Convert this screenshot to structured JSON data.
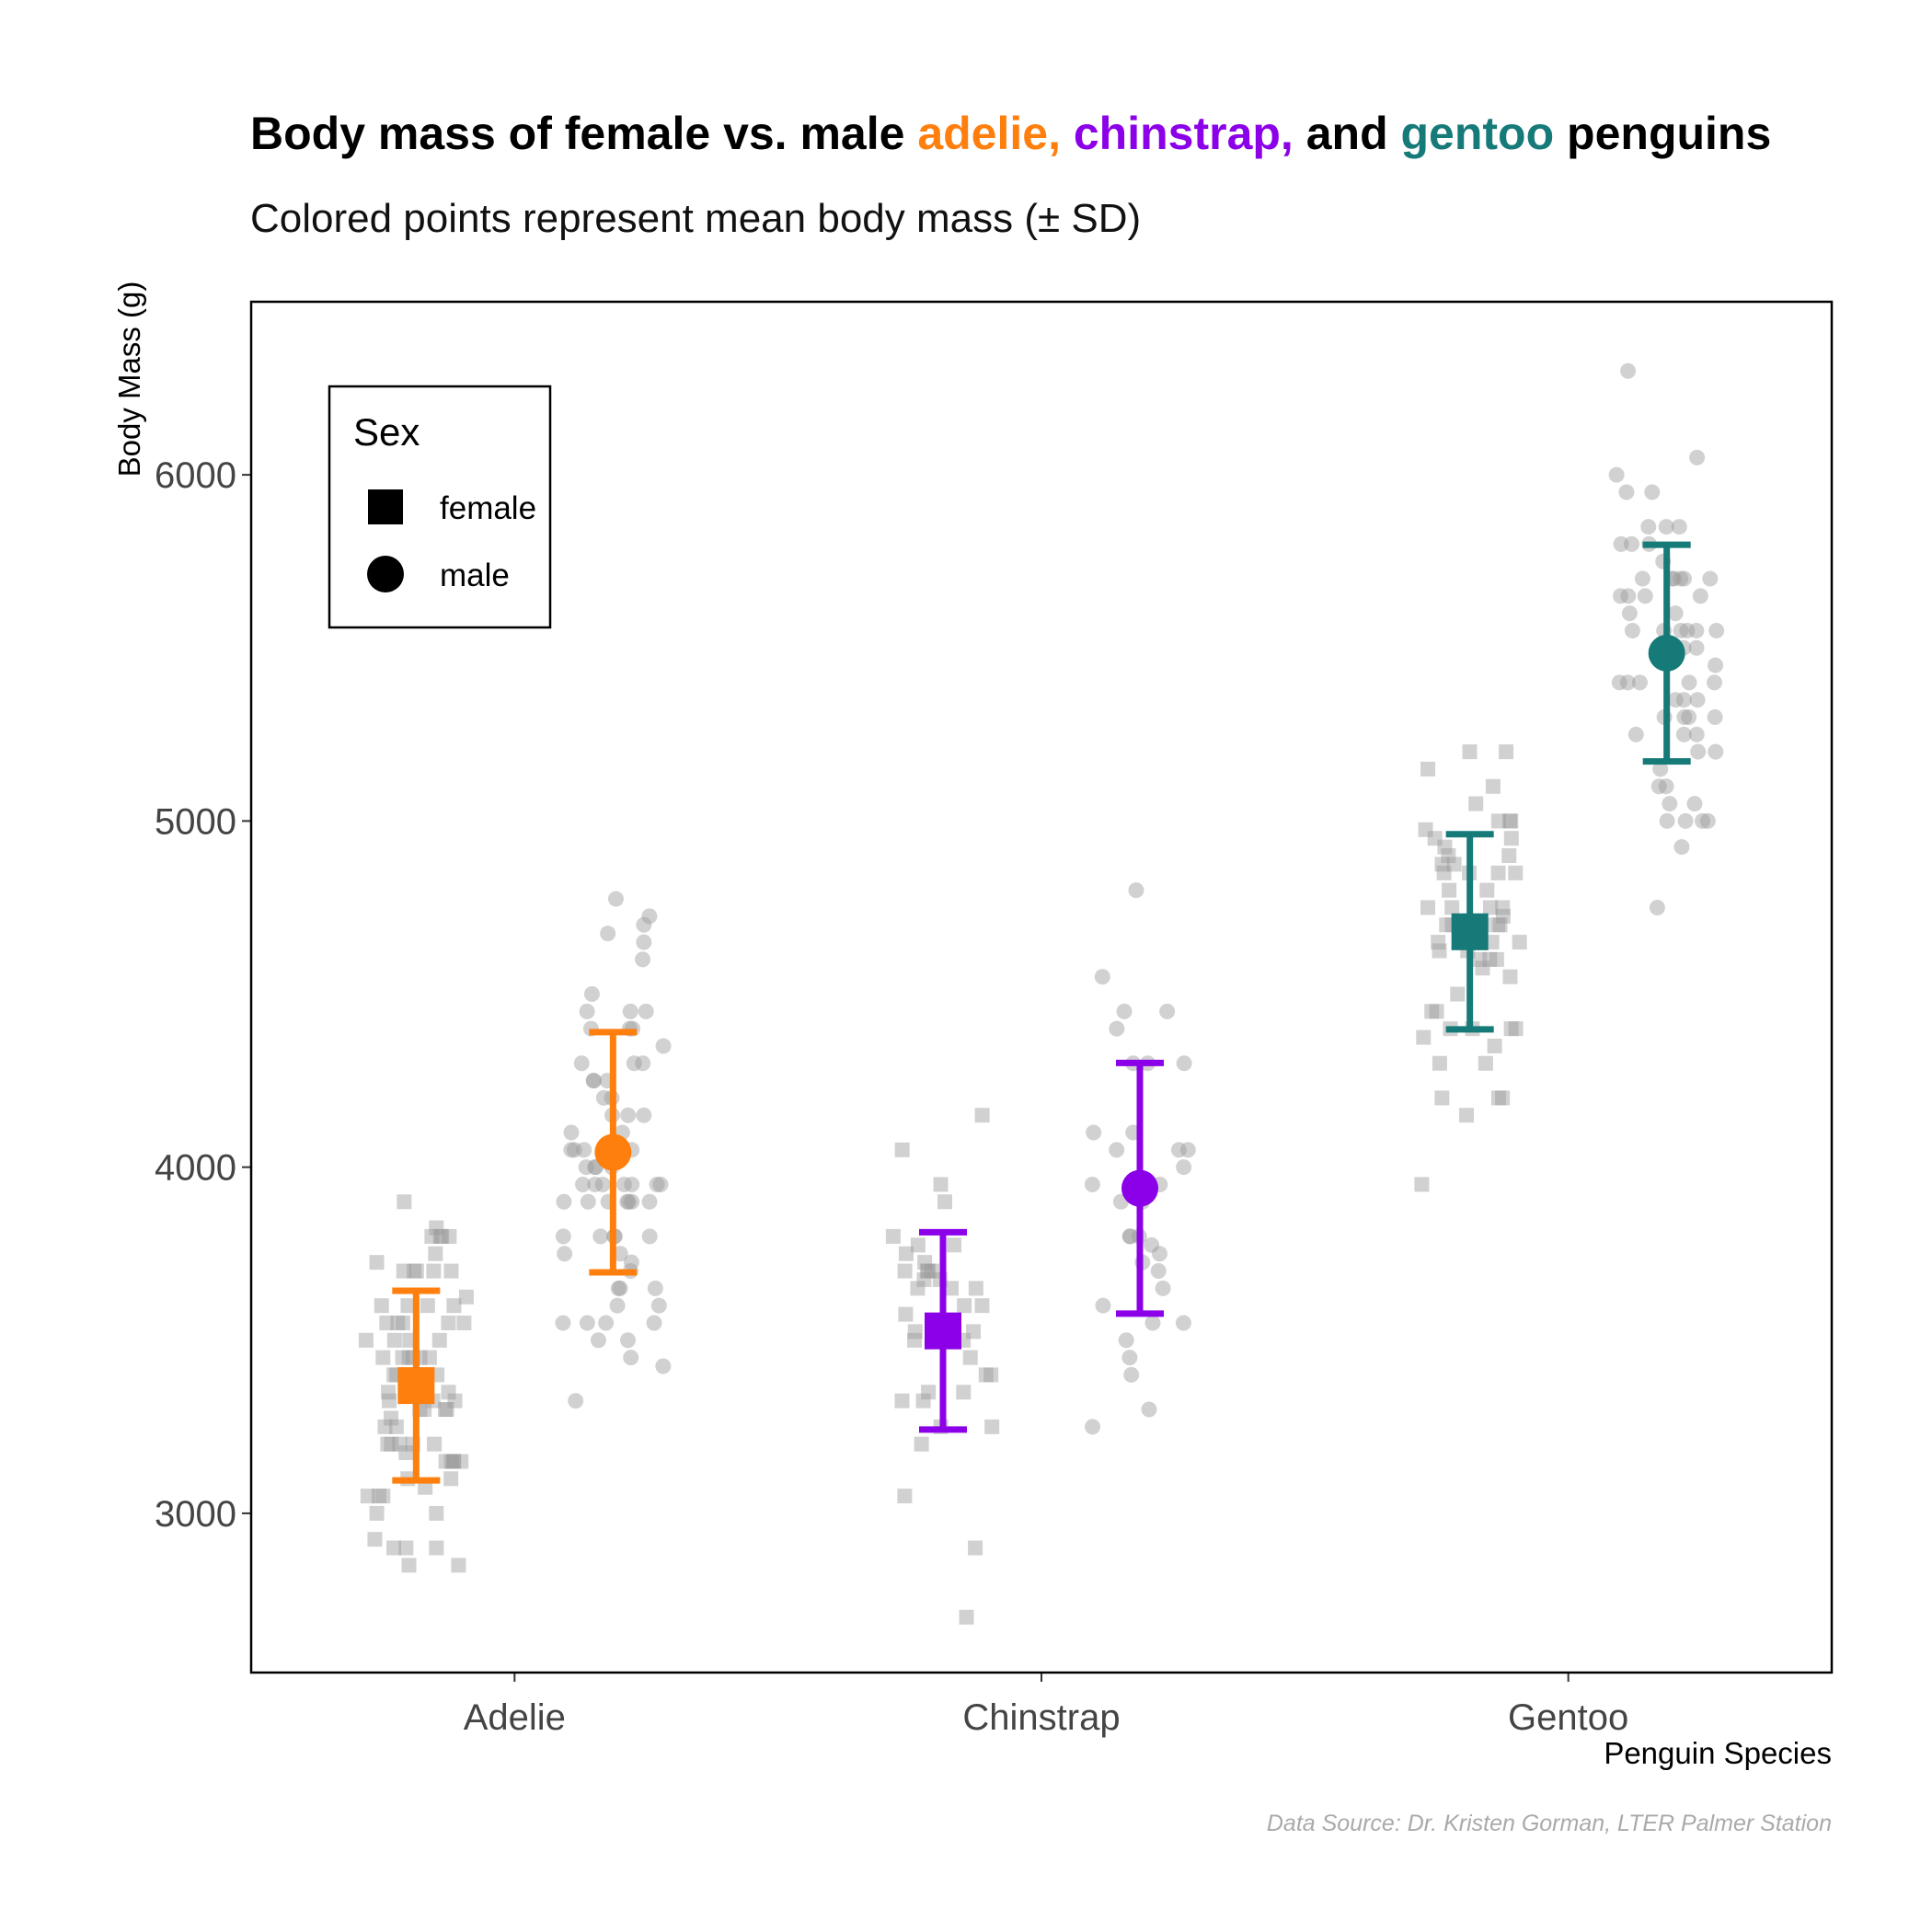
{
  "title": {
    "segments": [
      {
        "text": "Body mass of female vs. male ",
        "color": "#000000"
      },
      {
        "text": "adelie,",
        "color": "#FF7F0E"
      },
      {
        "text": "  ",
        "color": "#000000"
      },
      {
        "text": "chinstrap,",
        "color": "#8B00E8"
      },
      {
        "text": " and ",
        "color": "#000000"
      },
      {
        "text": "gentoo",
        "color": "#157A78"
      },
      {
        "text": " penguins",
        "color": "#000000"
      }
    ]
  },
  "subtitle": "Colored points represent mean body mass (± SD)",
  "caption": "Data Source: Dr. Kristen Gorman, LTER Palmer Station",
  "legend": {
    "title": "Sex",
    "items": [
      {
        "label": "female",
        "shape": "square"
      },
      {
        "label": "male",
        "shape": "circle"
      }
    ],
    "placement": "top-left"
  },
  "chart_data": {
    "type": "scatter",
    "xlabel": "Penguin Species",
    "ylabel": "Body Mass (g)",
    "categories": [
      "Adelie",
      "Chinstrap",
      "Gentoo"
    ],
    "ylim": [
      2540,
      6500
    ],
    "yticks": [
      3000,
      4000,
      5000,
      6000
    ],
    "grid": false,
    "species_colors": {
      "Adelie": "#FF7F0E",
      "Chinstrap": "#8B00E8",
      "Gentoo": "#157A78"
    },
    "raw_point_color": "#999999",
    "summary": [
      {
        "species": "Adelie",
        "sex": "female",
        "mean": 3369,
        "sd": 274
      },
      {
        "species": "Adelie",
        "sex": "male",
        "mean": 4043,
        "sd": 347
      },
      {
        "species": "Chinstrap",
        "sex": "female",
        "mean": 3527,
        "sd": 285
      },
      {
        "species": "Chinstrap",
        "sex": "male",
        "mean": 3939,
        "sd": 362
      },
      {
        "species": "Gentoo",
        "sex": "female",
        "mean": 4680,
        "sd": 282
      },
      {
        "species": "Gentoo",
        "sex": "male",
        "mean": 5485,
        "sd": 313
      }
    ],
    "raw": [
      {
        "species": "Adelie",
        "sex": "female",
        "values": [
          3800,
          3250,
          3450,
          3625,
          3200,
          3700,
          3450,
          3325,
          3400,
          3800,
          3800,
          3200,
          3150,
          3250,
          3300,
          3325,
          3550,
          3300,
          3150,
          3100,
          3000,
          3450,
          3500,
          3450,
          2900,
          3550,
          2850,
          3150,
          3600,
          2850,
          3350,
          3050,
          3600,
          3550,
          3700,
          3700,
          3550,
          3200,
          3800,
          3350,
          3500,
          3600,
          3550,
          3400,
          3300,
          3700,
          2900,
          3725,
          3075,
          2925,
          3750,
          3175,
          3825,
          3200,
          3900,
          2900,
          3350,
          3150,
          3450,
          3050,
          3275,
          3050,
          3325,
          3500,
          3500,
          3400,
          3100,
          3200,
          3300,
          3700,
          3450,
          3150,
          3600,
          3000
        ]
      },
      {
        "species": "Adelie",
        "sex": "male",
        "values": [
          3750,
          3650,
          4675,
          3800,
          4400,
          4500,
          4200,
          3600,
          3950,
          3800,
          3550,
          3950,
          3900,
          3900,
          4150,
          3950,
          4650,
          3900,
          4400,
          4600,
          3425,
          4150,
          4300,
          4050,
          3700,
          3800,
          3750,
          4400,
          4050,
          3950,
          4100,
          4450,
          3900,
          4150,
          4250,
          3900,
          4000,
          4700,
          4200,
          3550,
          3800,
          3950,
          4300,
          4450,
          4300,
          4350,
          4100,
          4725,
          4250,
          3550,
          3900,
          4775,
          3500,
          3950,
          4450,
          4000,
          3900,
          3650,
          3725,
          3325,
          3650,
          4050,
          3450,
          4250,
          4000,
          4050,
          3500,
          3800,
          3550,
          4000,
          4050,
          3600,
          3950
        ]
      },
      {
        "species": "Chinstrap",
        "sex": "female",
        "values": [
          3500,
          3900,
          3650,
          3525,
          3725,
          3950,
          3250,
          3750,
          4150,
          3700,
          3800,
          3775,
          3700,
          4050,
          3575,
          3050,
          3700,
          3450,
          3600,
          3350,
          3700,
          3500,
          3675,
          3400,
          3675,
          3325,
          3600,
          3350,
          3250,
          3525,
          3650,
          3650,
          3400,
          3775,
          2700,
          3325,
          2900,
          3200
        ]
      },
      {
        "species": "Chinstrap",
        "sex": "male",
        "values": [
          3900,
          3650,
          3725,
          3750,
          3700,
          4400,
          3600,
          4450,
          3950,
          4550,
          3800,
          4800,
          3500,
          3950,
          3550,
          4300,
          4450,
          4300,
          4100,
          3300,
          3900,
          4000,
          3550,
          3775,
          3800,
          4050,
          4050,
          4100,
          3800,
          3450,
          4300,
          4050,
          3250,
          3400
        ]
      },
      {
        "species": "Gentoo",
        "sex": "female",
        "values": [
          4500,
          4450,
          4550,
          4800,
          4400,
          4650,
          4650,
          4200,
          4150,
          4800,
          5000,
          4400,
          5000,
          4600,
          4700,
          5050,
          5150,
          4950,
          4350,
          3950,
          4300,
          4900,
          4200,
          5100,
          4850,
          4400,
          4900,
          4300,
          4450,
          4200,
          4400,
          4700,
          4700,
          4750,
          5200,
          4700,
          4600,
          4750,
          4625,
          4725,
          4750,
          4600,
          4875,
          4950,
          4750,
          4850,
          4875,
          4625,
          4850,
          4975,
          4700,
          4575,
          5000,
          4650,
          4375,
          4925,
          4850,
          5200
        ]
      },
      {
        "species": "Gentoo",
        "sex": "male",
        "values": [
          5700,
          5700,
          5400,
          5200,
          5150,
          5550,
          5850,
          5850,
          6300,
          5350,
          5700,
          5050,
          5100,
          5650,
          5550,
          5250,
          6050,
          5400,
          5250,
          5350,
          5700,
          4750,
          5550,
          5400,
          5300,
          5300,
          5000,
          5050,
          5000,
          5550,
          5300,
          5650,
          5700,
          5800,
          5550,
          5000,
          5100,
          5800,
          6000,
          5950,
          5450,
          5350,
          5600,
          5300,
          5550,
          5400,
          5650,
          5200,
          4925,
          5250,
          5600,
          5500,
          5950,
          5500,
          5850,
          5000,
          5750,
          5400,
          5700,
          5650,
          5800
        ]
      }
    ]
  }
}
